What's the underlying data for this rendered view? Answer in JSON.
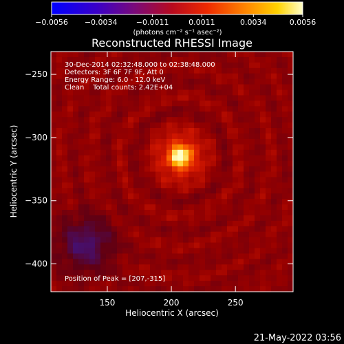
{
  "chart_data": {
    "type": "heatmap",
    "title": "Reconstructed RHESSI Image",
    "xlabel": "Heliocentric X (arcsec)",
    "ylabel": "Heliocentric Y (arcsec)",
    "xlim": [
      106,
      295
    ],
    "ylim": [
      -422,
      -232
    ],
    "x_ticks": [
      150,
      200,
      250
    ],
    "y_ticks": [
      -250,
      -300,
      -350,
      -400
    ],
    "colorbar": {
      "range": [
        -0.0056,
        0.0056
      ],
      "tick_values": [
        -0.0056,
        -0.0034,
        -0.0011,
        0.0011,
        0.0034,
        0.0056
      ],
      "tick_labels": [
        "−0.0056",
        "−0.0034",
        "−0.0011",
        "0.0011",
        "0.0034",
        "0.0056"
      ],
      "unit_label": "(photons cm⁻² s⁻¹ asec⁻²)"
    },
    "peak": {
      "x": 207,
      "y": -315
    },
    "info_lines": [
      "30-Dec-2014 02:32:48.000 to 02:38:48.000",
      "Detectors: 3F 6F 7F 9F, Att 0",
      "Energy Range: 6.0 - 12.0 keV",
      "Clean    Total counts: 2.42E+04"
    ],
    "peak_label": "Position of Peak = [207,-315]"
  },
  "footer": {
    "date": "21-May-2022 03:56"
  },
  "colors": {
    "background": "#000000",
    "text": "#ffffff"
  }
}
